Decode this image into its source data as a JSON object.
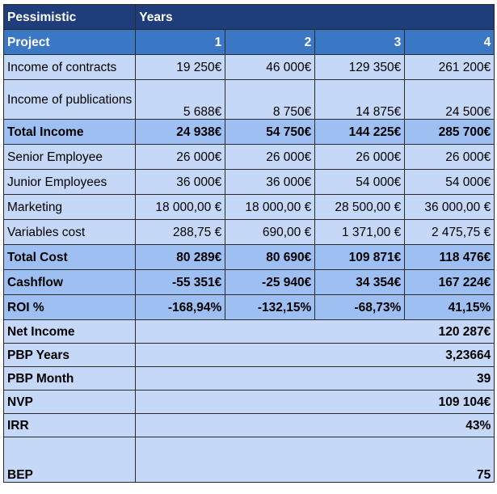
{
  "header": {
    "title": "Pessimistic",
    "years_label": "Years"
  },
  "columns": {
    "project_label": "Project",
    "years": [
      "1",
      "2",
      "3",
      "4"
    ]
  },
  "rows": [
    {
      "label": "Income of contracts",
      "values": [
        "19 250€",
        "46 000€",
        "129 350€",
        "261 200€"
      ]
    },
    {
      "label": "Income of publications",
      "values": [
        "5 688€",
        "8 750€",
        "14 875€",
        "24 500€"
      ]
    },
    {
      "label": "Total Income",
      "values": [
        "24 938€",
        "54 750€",
        "144 225€",
        "285 700€"
      ]
    },
    {
      "label": "Senior Employee",
      "values": [
        "26 000€",
        "26 000€",
        "26 000€",
        "26 000€"
      ]
    },
    {
      "label": "Junior Employees",
      "values": [
        "36 000€",
        "36 000€",
        "54 000€",
        "54 000€"
      ]
    },
    {
      "label": "Marketing",
      "values": [
        "18 000,00 €",
        "18 000,00 €",
        "28 500,00 €",
        "36 000,00 €"
      ]
    },
    {
      "label": "Variables cost",
      "values": [
        "288,75 €",
        "690,00 €",
        "1 371,00 €",
        "2 475,75 €"
      ]
    },
    {
      "label": "Total Cost",
      "values": [
        "80 289€",
        "80 690€",
        "109 871€",
        "118 476€"
      ]
    },
    {
      "label": "Cashflow",
      "values": [
        "-55 351€",
        "-25 940€",
        "34 354€",
        "167 224€"
      ]
    },
    {
      "label": "ROI %",
      "values": [
        "-168,94%",
        "-132,15%",
        "-68,73%",
        "41,15%"
      ]
    }
  ],
  "summary": [
    {
      "label": "Net Income",
      "value": "120 287€"
    },
    {
      "label": "PBP Years",
      "value": "3,23664"
    },
    {
      "label": "PBP Month",
      "value": "39"
    },
    {
      "label": "NVP",
      "value": "109 104€"
    },
    {
      "label": "IRR",
      "value": "43%"
    },
    {
      "label": "BEP",
      "value": "75"
    }
  ],
  "colors": {
    "title_bg": "#1f3d7a",
    "header_bg": "#3a78c5",
    "light_bg": "#c6d8f7",
    "bold_bg": "#9ebff2"
  }
}
